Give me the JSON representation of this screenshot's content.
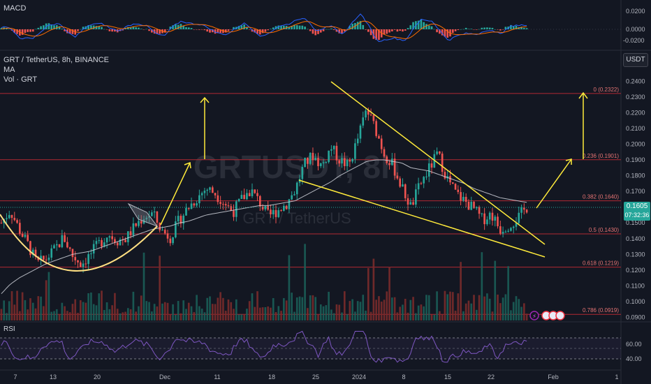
{
  "chart_data": [
    {
      "type": "line",
      "panel": "macd",
      "title": "MACD",
      "y_tick_labels": [
        "0.0200",
        "0.0000",
        "-0.0200"
      ],
      "ylim": [
        -0.026,
        0.024
      ]
    },
    {
      "type": "candlestick",
      "panel": "price",
      "title": "GRT / TetherUS, 8h, BINANCE",
      "indicators": [
        "MA",
        "Vol · GRT"
      ],
      "watermark": {
        "symbol": "GRTUSDT, 8h",
        "name": "GRT / TetherUS"
      },
      "currency_button": "USDT",
      "last_price": "0.1605",
      "countdown": "07:32:36",
      "x_tick_labels": [
        "7",
        "13",
        "20",
        "Dec",
        "11",
        "18",
        "25",
        "2024",
        "8",
        "15",
        "22",
        "Feb",
        "1"
      ],
      "y_tick_labels": [
        "0.2400",
        "0.2300",
        "0.2200",
        "0.2100",
        "0.2000",
        "0.1900",
        "0.1800",
        "0.1700",
        "0.1600",
        "0.1500",
        "0.1400",
        "0.1300",
        "0.1200",
        "0.1100",
        "0.1000",
        "0.0900"
      ],
      "ylim": [
        0.088,
        0.249
      ],
      "fib_levels": [
        {
          "label": "0 (0.2322)",
          "value": 0.2322
        },
        {
          "label": "0.236 (0.1901)",
          "value": 0.1901
        },
        {
          "label": "0.382 (0.1640)",
          "value": 0.164
        },
        {
          "label": "0.5 (0.1430)",
          "value": 0.143
        },
        {
          "label": "0.618 (0.1219)",
          "value": 0.1219
        },
        {
          "label": "0.786 (0.0919)",
          "value": 0.0919
        }
      ],
      "close_series": [
        0.15,
        0.158,
        0.146,
        0.136,
        0.124,
        0.127,
        0.133,
        0.141,
        0.129,
        0.124,
        0.13,
        0.137,
        0.143,
        0.139,
        0.14,
        0.148,
        0.154,
        0.156,
        0.145,
        0.141,
        0.152,
        0.16,
        0.166,
        0.172,
        0.169,
        0.163,
        0.157,
        0.165,
        0.171,
        0.163,
        0.154,
        0.158,
        0.162,
        0.171,
        0.187,
        0.193,
        0.186,
        0.198,
        0.19,
        0.186,
        0.203,
        0.222,
        0.21,
        0.194,
        0.186,
        0.172,
        0.16,
        0.174,
        0.184,
        0.194,
        0.179,
        0.169,
        0.164,
        0.159,
        0.152,
        0.156,
        0.146,
        0.149,
        0.153,
        0.16
      ],
      "ma_series": [
        0.105,
        0.111,
        0.115,
        0.118,
        0.121,
        0.124,
        0.126,
        0.128,
        0.13,
        0.131,
        0.132,
        0.134,
        0.136,
        0.138,
        0.14,
        0.142,
        0.144,
        0.146,
        0.147,
        0.148,
        0.15,
        0.151,
        0.153,
        0.155,
        0.156,
        0.157,
        0.158,
        0.159,
        0.16,
        0.161,
        0.161,
        0.162,
        0.163,
        0.164,
        0.167,
        0.17,
        0.173,
        0.176,
        0.18,
        0.183,
        0.186,
        0.189,
        0.19,
        0.19,
        0.189,
        0.188,
        0.185,
        0.184,
        0.183,
        0.181,
        0.179,
        0.177,
        0.175,
        0.172,
        0.17,
        0.168,
        0.166,
        0.165,
        0.164,
        0.163
      ]
    },
    {
      "type": "line",
      "panel": "rsi",
      "title": "RSI",
      "y_tick_labels": [
        "60.00",
        "40.00"
      ],
      "ylim": [
        20,
        85
      ]
    }
  ]
}
